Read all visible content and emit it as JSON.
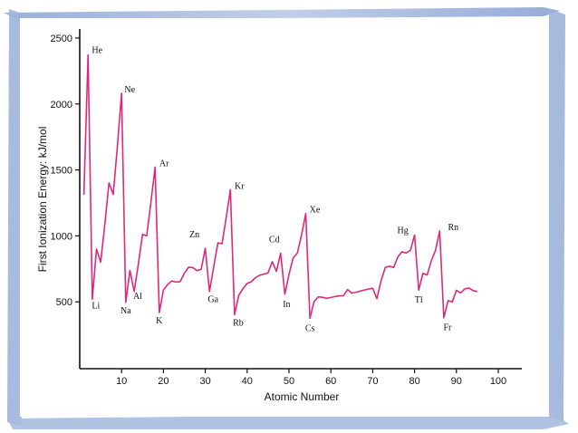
{
  "chart_data": {
    "type": "line",
    "xlabel": "Atomic Number",
    "ylabel": "First Ionization Energy: kJ/mol",
    "xlim": [
      0,
      100
    ],
    "ylim": [
      0,
      2600
    ],
    "x_ticks": [
      10,
      20,
      30,
      40,
      50,
      60,
      70,
      80,
      90,
      100
    ],
    "y_ticks": [
      500,
      1000,
      1500,
      2000,
      2500
    ],
    "line_color": "#e0287a",
    "series": [
      {
        "x": [
          1,
          2,
          3,
          4,
          5,
          6,
          7,
          8,
          9,
          10,
          11,
          12,
          13,
          14,
          15,
          16,
          17,
          18,
          19,
          20,
          21,
          22,
          23,
          24,
          25,
          26,
          27,
          28,
          29,
          30,
          31,
          32,
          33,
          34,
          35,
          36,
          37,
          38,
          39,
          40,
          41,
          42,
          43,
          44,
          45,
          46,
          47,
          48,
          49,
          50,
          51,
          52,
          53,
          54,
          55,
          56,
          57,
          58,
          59,
          60,
          61,
          62,
          63,
          64,
          65,
          66,
          67,
          68,
          69,
          70,
          71,
          72,
          73,
          74,
          75,
          76,
          77,
          78,
          79,
          80,
          81,
          82,
          83,
          84,
          85,
          86,
          87,
          88,
          89,
          90,
          91,
          92,
          93,
          94,
          95
        ],
        "y": [
          1312,
          2372,
          520,
          900,
          801,
          1086,
          1402,
          1314,
          1681,
          2081,
          496,
          738,
          578,
          786,
          1012,
          1000,
          1251,
          1521,
          419,
          590,
          631,
          658,
          650,
          653,
          717,
          762,
          760,
          737,
          745,
          906,
          579,
          762,
          947,
          941,
          1140,
          1351,
          403,
          550,
          600,
          640,
          652,
          684,
          702,
          710,
          720,
          804,
          731,
          868,
          558,
          709,
          834,
          869,
          1008,
          1170,
          376,
          503,
          538,
          534,
          527,
          533,
          540,
          545,
          547,
          593,
          566,
          573,
          581,
          589,
          597,
          603,
          524,
          659,
          761,
          770,
          760,
          840,
          880,
          870,
          890,
          1007,
          589,
          716,
          703,
          812,
          890,
          1037,
          380,
          509,
          499,
          587,
          568,
          598,
          605,
          585,
          578
        ]
      }
    ],
    "annotations": [
      {
        "text": "He",
        "x": 2,
        "y": 2372
      },
      {
        "text": "Li",
        "x": 3,
        "y": 520
      },
      {
        "text": "Ne",
        "x": 10,
        "y": 2081
      },
      {
        "text": "Na",
        "x": 11,
        "y": 496
      },
      {
        "text": "Al",
        "x": 13,
        "y": 578
      },
      {
        "text": "Ar",
        "x": 18,
        "y": 1521
      },
      {
        "text": "K",
        "x": 19,
        "y": 419
      },
      {
        "text": "Zn",
        "x": 30,
        "y": 906
      },
      {
        "text": "Ga",
        "x": 31,
        "y": 579
      },
      {
        "text": "Kr",
        "x": 36,
        "y": 1351
      },
      {
        "text": "Rb",
        "x": 37,
        "y": 403
      },
      {
        "text": "Cd",
        "x": 48,
        "y": 868
      },
      {
        "text": "In",
        "x": 49,
        "y": 558
      },
      {
        "text": "Xe",
        "x": 54,
        "y": 1170
      },
      {
        "text": "Cs",
        "x": 55,
        "y": 376
      },
      {
        "text": "Hg",
        "x": 80,
        "y": 1007
      },
      {
        "text": "Tl",
        "x": 81,
        "y": 589
      },
      {
        "text": "Rn",
        "x": 86,
        "y": 1037
      },
      {
        "text": "Fr",
        "x": 87,
        "y": 380
      }
    ]
  }
}
